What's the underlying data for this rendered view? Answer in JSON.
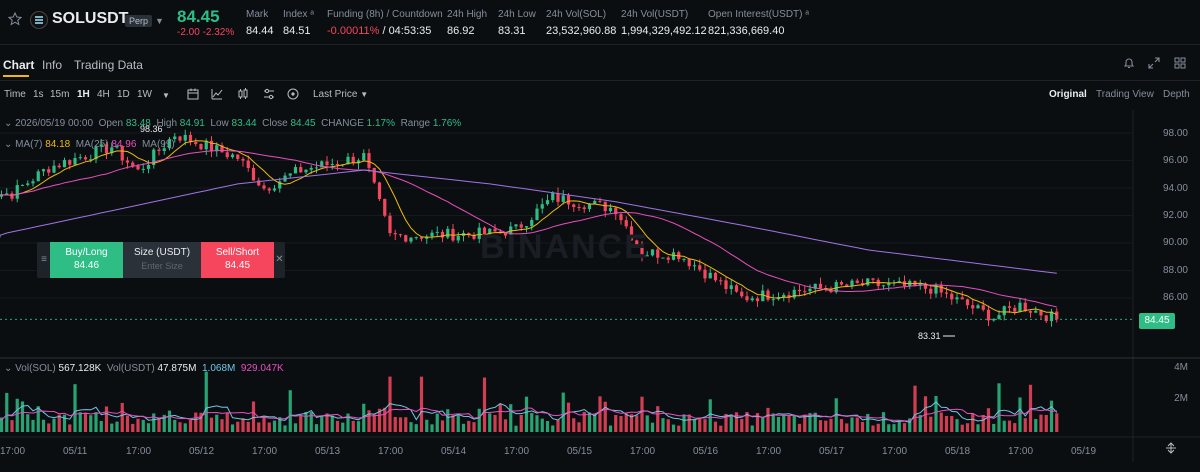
{
  "ticker": {
    "symbol": "SOLUSDT",
    "badge": "Perp",
    "price": "84.45",
    "change": "-2.00",
    "change_pct": "-2.32%",
    "stats": [
      {
        "label": "Mark",
        "value": "84.44"
      },
      {
        "label": "Index ᵃ",
        "value": "84.51"
      },
      {
        "label": "Funding (8h) / Countdown",
        "value_neg": "-0.00011%",
        "value": "/ 04:53:35"
      },
      {
        "label": "24h High",
        "value": "86.92"
      },
      {
        "label": "24h Low",
        "value": "83.31"
      },
      {
        "label": "24h Vol(SOL)",
        "value": "23,532,960.88"
      },
      {
        "label": "24h Vol(USDT)",
        "value": "1,994,329,492.12"
      },
      {
        "label": "Open Interest(USDT) ᵃ",
        "value": "821,336,669.40"
      }
    ]
  },
  "tabs": [
    "Chart",
    "Info",
    "Trading Data"
  ],
  "toolbar": {
    "intervals": [
      "Time",
      "1s",
      "15m",
      "1H",
      "4H",
      "1D",
      "1W"
    ],
    "active_interval": "1H",
    "price_type": "Last Price",
    "views": [
      "Original",
      "Trading View",
      "Depth"
    ],
    "active_view": "Original"
  },
  "ohlc": {
    "date": "2026/05/19 00:00",
    "open_label": "Open",
    "open": "83.48",
    "high_label": "High",
    "high": "84.91",
    "low_label": "Low",
    "low": "83.44",
    "close_label": "Close",
    "close": "84.45",
    "change_label": "CHANGE",
    "change": "1.17%",
    "range_label": "Range",
    "range": "1.76%"
  },
  "ma": {
    "ma7_label": "MA(7)",
    "ma7": "84.18",
    "ma25_label": "MA(25)",
    "ma25": "84.96",
    "ma99_label": "MA(99)"
  },
  "price_axis": [
    "98.00",
    "96.00",
    "94.00",
    "92.00",
    "90.00",
    "88.00",
    "86.00"
  ],
  "last_price_tag": "84.45",
  "high_marker": "98.36",
  "low_marker": "83.31",
  "trade_box": {
    "buy_label": "Buy/Long",
    "buy_price": "84.46",
    "size_label": "Size (USDT)",
    "size_placeholder": "Enter Size",
    "sell_label": "Sell/Short",
    "sell_price": "84.45"
  },
  "watermark": "BINANCE",
  "volume": {
    "sol_label": "Vol(SOL)",
    "sol": "567.128K",
    "usdt_label": "Vol(USDT)",
    "usdt": "47.875M",
    "ma1": "1.068M",
    "ma2": "929.047K",
    "axis": [
      "4M",
      "2M"
    ]
  },
  "x_axis": [
    "17:00",
    "05/11",
    "17:00",
    "05/12",
    "17:00",
    "05/13",
    "17:00",
    "05/14",
    "17:00",
    "05/15",
    "17:00",
    "05/16",
    "17:00",
    "05/17",
    "17:00",
    "05/18",
    "17:00",
    "05/19"
  ],
  "colors": {
    "up": "#2ebd85",
    "down": "#f6465d",
    "ma7": "#f0b90b",
    "ma25": "#e84fbf",
    "ma99": "#a074e4",
    "accent": "#f0b90b"
  },
  "chart_data": {
    "type": "candlestick",
    "interval": "1H",
    "ylim": [
      83,
      99
    ],
    "anchors": [
      {
        "time": "05/10 17:00",
        "price": 93.6
      },
      {
        "time": "05/11 00:00",
        "price": 95.5
      },
      {
        "time": "05/11 12:00",
        "price": 97.0
      },
      {
        "time": "05/11 17:00",
        "price": 95.2
      },
      {
        "time": "05/12 00:00",
        "price": 97.9
      },
      {
        "time": "05/12 12:00",
        "price": 96.2
      },
      {
        "time": "05/12 17:00",
        "price": 94.0
      },
      {
        "time": "05/13 00:00",
        "price": 95.3
      },
      {
        "time": "05/13 12:00",
        "price": 96.3
      },
      {
        "time": "05/13 17:00",
        "price": 90.5
      },
      {
        "time": "05/14 12:00",
        "price": 90.7
      },
      {
        "time": "05/14 17:00",
        "price": 91.0
      },
      {
        "time": "05/15 00:00",
        "price": 93.3
      },
      {
        "time": "05/15 12:00",
        "price": 92.5
      },
      {
        "time": "05/15 17:00",
        "price": 89.3
      },
      {
        "time": "05/16 00:00",
        "price": 89.2
      },
      {
        "time": "05/16 12:00",
        "price": 86.0
      },
      {
        "time": "05/17 00:00",
        "price": 86.6
      },
      {
        "time": "05/17 12:00",
        "price": 87.0
      },
      {
        "time": "05/18 00:00",
        "price": 86.7
      },
      {
        "time": "05/18 12:00",
        "price": 84.6
      },
      {
        "time": "05/18 17:00",
        "price": 85.5
      },
      {
        "time": "05/19 00:00",
        "price": 84.45
      }
    ],
    "ma99_anchors": [
      {
        "time": "05/10 12:00",
        "price": 90.4
      },
      {
        "time": "05/12 12:00",
        "price": 94.3
      },
      {
        "time": "05/13 12:00",
        "price": 95.3
      },
      {
        "time": "05/14 12:00",
        "price": 94.3
      },
      {
        "time": "05/15 12:00",
        "price": 93.0
      },
      {
        "time": "05/16 12:00",
        "price": 91.3
      },
      {
        "time": "05/17 12:00",
        "price": 89.5
      },
      {
        "time": "05/19 00:00",
        "price": 87.8
      }
    ],
    "volume_ylim": [
      0,
      4500000
    ]
  }
}
